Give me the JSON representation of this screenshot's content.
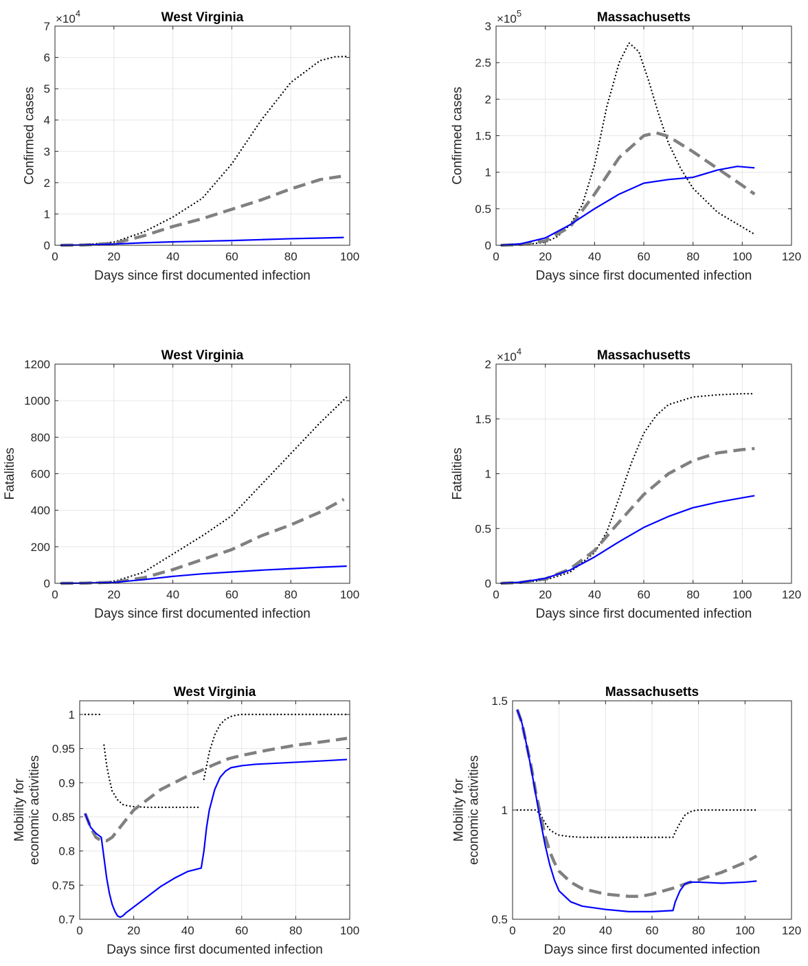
{
  "chart_data": [
    {
      "type": "line",
      "title": "West Virginia",
      "xlabel": "Days since first documented infection",
      "ylabel": [
        "Confirmed cases"
      ],
      "xlim": [
        0,
        100
      ],
      "ylim": [
        0,
        70000
      ],
      "xticks": [
        0,
        20,
        40,
        60,
        80,
        100
      ],
      "xtick_labels": [
        "0",
        "20",
        "40",
        "60",
        "80",
        "100"
      ],
      "yticks": [
        0,
        10000,
        20000,
        30000,
        40000,
        50000,
        60000,
        70000
      ],
      "ytick_labels": [
        "0",
        "1",
        "2",
        "3",
        "4",
        "5",
        "6",
        "7"
      ],
      "multiplier": {
        "base": "×10",
        "exp": "4"
      },
      "grid": true,
      "series": [
        {
          "style": "dotted",
          "color": "#000000",
          "x": [
            2,
            10,
            20,
            30,
            40,
            50,
            60,
            70,
            80,
            90,
            95,
            99
          ],
          "values": [
            0,
            150,
            1000,
            4200,
            9000,
            15000,
            26000,
            40000,
            52000,
            59000,
            60200,
            60300
          ]
        },
        {
          "style": "dashed",
          "color": "#808080",
          "x": [
            2,
            10,
            20,
            30,
            40,
            50,
            60,
            70,
            80,
            90,
            97
          ],
          "values": [
            0,
            100,
            600,
            3000,
            6000,
            8500,
            11500,
            14500,
            18000,
            21000,
            22000
          ]
        },
        {
          "style": "solid",
          "color": "#0000ff",
          "x": [
            2,
            10,
            20,
            30,
            40,
            50,
            60,
            70,
            80,
            90,
            98
          ],
          "values": [
            0,
            100,
            400,
            800,
            1100,
            1300,
            1500,
            1800,
            2100,
            2300,
            2500
          ]
        }
      ]
    },
    {
      "type": "line",
      "title": "Massachusetts",
      "xlabel": "Days since first documented infection",
      "ylabel": [
        "Confirmed cases"
      ],
      "xlim": [
        0,
        120
      ],
      "ylim": [
        0,
        300000
      ],
      "xticks": [
        0,
        20,
        40,
        60,
        80,
        100,
        120
      ],
      "xtick_labels": [
        "0",
        "20",
        "40",
        "60",
        "80",
        "100",
        "120"
      ],
      "yticks": [
        0,
        50000,
        100000,
        150000,
        200000,
        250000,
        300000
      ],
      "ytick_labels": [
        "0",
        "0.5",
        "1",
        "1.5",
        "2",
        "2.5",
        "3"
      ],
      "multiplier": {
        "base": "×10",
        "exp": "5"
      },
      "grid": true,
      "series": [
        {
          "style": "dotted",
          "color": "#000000",
          "x": [
            2,
            10,
            20,
            25,
            30,
            35,
            40,
            45,
            50,
            54,
            58,
            62,
            66,
            70,
            75,
            80,
            90,
            100,
            105
          ],
          "values": [
            0,
            500,
            4000,
            12000,
            28000,
            55000,
            110000,
            190000,
            250000,
            277000,
            265000,
            225000,
            180000,
            140000,
            105000,
            78000,
            45000,
            25000,
            15000
          ]
        },
        {
          "style": "dashed",
          "color": "#808080",
          "x": [
            2,
            10,
            20,
            30,
            40,
            50,
            60,
            65,
            70,
            80,
            90,
            100,
            105
          ],
          "values": [
            0,
            1000,
            6000,
            25000,
            70000,
            120000,
            150000,
            154000,
            149000,
            128000,
            105000,
            82000,
            70000
          ]
        },
        {
          "style": "solid",
          "color": "#0000ff",
          "x": [
            2,
            10,
            20,
            30,
            40,
            50,
            60,
            70,
            80,
            90,
            98,
            105
          ],
          "values": [
            0,
            2000,
            10000,
            28000,
            50000,
            70000,
            85000,
            90000,
            93000,
            103000,
            108000,
            106000
          ]
        }
      ]
    },
    {
      "type": "line",
      "title": "West Virginia",
      "xlabel": "Days since first documented infection",
      "ylabel": [
        "Fatalities"
      ],
      "xlim": [
        0,
        100
      ],
      "ylim": [
        0,
        1200
      ],
      "xticks": [
        0,
        20,
        40,
        60,
        80,
        100
      ],
      "xtick_labels": [
        "0",
        "20",
        "40",
        "60",
        "80",
        "100"
      ],
      "yticks": [
        0,
        200,
        400,
        600,
        800,
        1000,
        1200
      ],
      "ytick_labels": [
        "0",
        "200",
        "400",
        "600",
        "800",
        "1000",
        "1200"
      ],
      "multiplier": null,
      "grid": true,
      "series": [
        {
          "style": "dotted",
          "color": "#000000",
          "x": [
            2,
            10,
            20,
            30,
            40,
            50,
            60,
            70,
            80,
            90,
            99
          ],
          "values": [
            0,
            1,
            10,
            60,
            160,
            260,
            370,
            540,
            710,
            880,
            1020
          ]
        },
        {
          "style": "dashed",
          "color": "#808080",
          "x": [
            2,
            10,
            20,
            30,
            40,
            50,
            60,
            70,
            80,
            90,
            98
          ],
          "values": [
            0,
            1,
            6,
            30,
            75,
            130,
            185,
            260,
            320,
            390,
            460
          ]
        },
        {
          "style": "solid",
          "color": "#0000ff",
          "x": [
            2,
            10,
            20,
            30,
            40,
            50,
            60,
            70,
            80,
            90,
            99
          ],
          "values": [
            0,
            1,
            5,
            20,
            38,
            52,
            62,
            72,
            80,
            88,
            94
          ]
        }
      ]
    },
    {
      "type": "line",
      "title": "Massachusetts",
      "xlabel": "Days since first documented infection",
      "ylabel": [
        "Fatalities"
      ],
      "xlim": [
        0,
        120
      ],
      "ylim": [
        0,
        20000
      ],
      "xticks": [
        0,
        20,
        40,
        60,
        80,
        100,
        120
      ],
      "xtick_labels": [
        "0",
        "20",
        "40",
        "60",
        "80",
        "100",
        "120"
      ],
      "yticks": [
        0,
        5000,
        10000,
        15000,
        20000
      ],
      "ytick_labels": [
        "0",
        "0.5",
        "1",
        "1.5",
        "2"
      ],
      "multiplier": {
        "base": "×10",
        "exp": "4"
      },
      "grid": true,
      "series": [
        {
          "style": "dotted",
          "color": "#000000",
          "x": [
            2,
            10,
            20,
            30,
            40,
            45,
            50,
            55,
            60,
            65,
            70,
            80,
            90,
            100,
            105
          ],
          "values": [
            0,
            60,
            300,
            1000,
            2800,
            4700,
            7800,
            11000,
            13700,
            15300,
            16300,
            17000,
            17200,
            17300,
            17300
          ]
        },
        {
          "style": "dashed",
          "color": "#808080",
          "x": [
            2,
            10,
            20,
            30,
            40,
            50,
            60,
            70,
            80,
            90,
            100,
            105
          ],
          "values": [
            0,
            80,
            400,
            1300,
            3000,
            5600,
            8100,
            10000,
            11200,
            11900,
            12200,
            12300
          ]
        },
        {
          "style": "solid",
          "color": "#0000ff",
          "x": [
            2,
            10,
            20,
            30,
            40,
            50,
            60,
            70,
            80,
            90,
            100,
            105
          ],
          "values": [
            0,
            100,
            450,
            1200,
            2400,
            3800,
            5100,
            6100,
            6900,
            7400,
            7800,
            8000
          ]
        }
      ]
    },
    {
      "type": "line",
      "title": "West Virginia",
      "xlabel": "Days since first documented infection",
      "ylabel": [
        "Mobility for",
        "economic activities"
      ],
      "xlim": [
        0,
        100
      ],
      "ylim": [
        0.7,
        1.02
      ],
      "xticks": [
        0,
        20,
        40,
        60,
        80,
        100
      ],
      "xtick_labels": [
        "0",
        "20",
        "40",
        "60",
        "80",
        "100"
      ],
      "yticks": [
        0.7,
        0.75,
        0.8,
        0.85,
        0.9,
        0.95,
        1
      ],
      "ytick_labels": [
        "0.7",
        "0.75",
        "0.8",
        "0.85",
        "0.9",
        "0.95",
        "1"
      ],
      "multiplier": null,
      "grid": true,
      "series": [
        {
          "style": "dotted",
          "color": "#000000",
          "segments": [
            {
              "x": [
                2,
                4,
                6,
                8
              ],
              "values": [
                1,
                1,
                1,
                1
              ]
            },
            {
              "x": [
                9,
                10,
                11,
                12,
                14,
                16,
                18,
                20,
                25,
                30,
                35,
                40,
                45
              ],
              "values": [
                0.955,
                0.925,
                0.905,
                0.888,
                0.875,
                0.868,
                0.866,
                0.865,
                0.864,
                0.864,
                0.864,
                0.864,
                0.864
              ]
            },
            {
              "x": [
                46,
                47,
                48,
                50,
                52,
                54,
                56,
                58,
                60,
                65,
                70,
                80,
                90,
                99
              ],
              "values": [
                0.905,
                0.925,
                0.945,
                0.97,
                0.985,
                0.993,
                0.997,
                0.999,
                1,
                1,
                1,
                1,
                1,
                1
              ]
            }
          ]
        },
        {
          "style": "dashed",
          "color": "#808080",
          "x": [
            2,
            4,
            6,
            8,
            10,
            12,
            15,
            20,
            25,
            30,
            35,
            40,
            45,
            50,
            55,
            60,
            70,
            80,
            90,
            99
          ],
          "values": [
            0.855,
            0.835,
            0.82,
            0.815,
            0.815,
            0.82,
            0.835,
            0.86,
            0.875,
            0.89,
            0.9,
            0.91,
            0.918,
            0.927,
            0.935,
            0.94,
            0.948,
            0.955,
            0.96,
            0.965
          ]
        },
        {
          "style": "solid",
          "color": "#0000ff",
          "x": [
            2,
            4,
            6,
            8,
            9,
            10,
            11,
            12,
            13,
            14,
            15,
            16,
            17,
            20,
            25,
            30,
            35,
            40,
            45,
            46,
            47,
            48,
            50,
            52,
            54,
            56,
            60,
            65,
            70,
            80,
            90,
            99
          ],
          "values": [
            0.855,
            0.835,
            0.826,
            0.82,
            0.79,
            0.76,
            0.738,
            0.722,
            0.712,
            0.705,
            0.703,
            0.705,
            0.709,
            0.718,
            0.733,
            0.748,
            0.76,
            0.77,
            0.775,
            0.8,
            0.835,
            0.86,
            0.89,
            0.908,
            0.917,
            0.922,
            0.925,
            0.927,
            0.928,
            0.93,
            0.932,
            0.934
          ]
        }
      ]
    },
    {
      "type": "line",
      "title": "Massachusetts",
      "xlabel": "Days since first documented infection",
      "ylabel": [
        "Mobility for",
        "economic activities"
      ],
      "xlim": [
        0,
        120
      ],
      "ylim": [
        0.5,
        1.5
      ],
      "xticks": [
        0,
        20,
        40,
        60,
        80,
        100,
        120
      ],
      "xtick_labels": [
        "0",
        "20",
        "40",
        "60",
        "80",
        "100",
        "120"
      ],
      "yticks": [
        0.5,
        1,
        1.5
      ],
      "ytick_labels": [
        "0.5",
        "1",
        "1.5"
      ],
      "multiplier": null,
      "grid": true,
      "series": [
        {
          "style": "dotted",
          "color": "#000000",
          "x": [
            2,
            5,
            10,
            12,
            14,
            16,
            18,
            20,
            25,
            30,
            40,
            50,
            60,
            69,
            70,
            72,
            74,
            76,
            78,
            80,
            90,
            100,
            105
          ],
          "values": [
            1,
            1,
            1,
            0.98,
            0.94,
            0.91,
            0.895,
            0.885,
            0.878,
            0.875,
            0.875,
            0.875,
            0.875,
            0.875,
            0.9,
            0.94,
            0.975,
            0.99,
            0.997,
            1,
            1,
            1,
            1
          ]
        },
        {
          "style": "dashed",
          "color": "#808080",
          "x": [
            2,
            4,
            6,
            8,
            10,
            12,
            14,
            16,
            18,
            20,
            25,
            30,
            40,
            50,
            55,
            60,
            70,
            75,
            80,
            90,
            100,
            105
          ],
          "values": [
            1.46,
            1.4,
            1.3,
            1.2,
            1.08,
            0.98,
            0.88,
            0.81,
            0.76,
            0.72,
            0.67,
            0.64,
            0.615,
            0.605,
            0.605,
            0.615,
            0.645,
            0.665,
            0.68,
            0.715,
            0.76,
            0.79
          ]
        },
        {
          "style": "solid",
          "color": "#0000ff",
          "x": [
            2,
            4,
            6,
            8,
            10,
            12,
            14,
            16,
            18,
            20,
            25,
            30,
            40,
            50,
            60,
            69,
            70,
            72,
            74,
            76,
            80,
            90,
            100,
            105
          ],
          "values": [
            1.46,
            1.4,
            1.3,
            1.19,
            1.07,
            0.95,
            0.84,
            0.75,
            0.68,
            0.63,
            0.58,
            0.56,
            0.545,
            0.535,
            0.535,
            0.54,
            0.58,
            0.63,
            0.66,
            0.67,
            0.67,
            0.665,
            0.67,
            0.675
          ]
        }
      ]
    }
  ]
}
